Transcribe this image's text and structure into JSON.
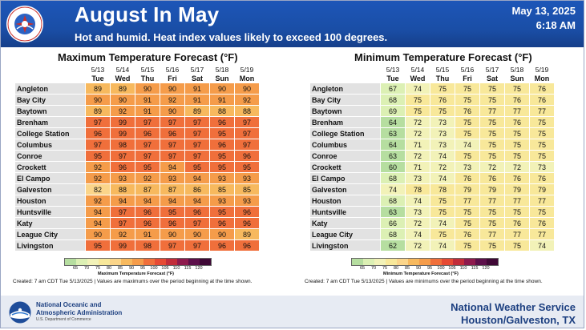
{
  "header": {
    "title": "August In May",
    "subtitle": "Hot and humid. Heat index values likely to exceed 100 degrees.",
    "date": "May 13, 2025",
    "time": "6:18 AM",
    "seal_text": "NATIONAL WEATHER SERVICE"
  },
  "days": [
    {
      "date": "5/13",
      "day": "Tue"
    },
    {
      "date": "5/14",
      "day": "Wed"
    },
    {
      "date": "5/15",
      "day": "Thu"
    },
    {
      "date": "5/16",
      "day": "Fri"
    },
    {
      "date": "5/17",
      "day": "Sat"
    },
    {
      "date": "5/18",
      "day": "Sun"
    },
    {
      "date": "5/19",
      "day": "Mon"
    }
  ],
  "max_panel": {
    "title": "Maximum Temperature Forecast (°F)",
    "legend_caption": "Maximum Temperature Forecast (°F)",
    "note": "Created: 7 am CDT Tue 5/13/2025  |  Values are maximums over the period beginning at the time shown.",
    "rows": [
      {
        "city": "Angleton",
        "values": [
          89,
          89,
          90,
          90,
          91,
          90,
          90
        ]
      },
      {
        "city": "Bay City",
        "values": [
          90,
          90,
          91,
          92,
          91,
          91,
          92
        ]
      },
      {
        "city": "Baytown",
        "values": [
          89,
          92,
          91,
          90,
          89,
          88,
          88
        ]
      },
      {
        "city": "Brenham",
        "values": [
          97,
          99,
          97,
          97,
          97,
          96,
          97
        ]
      },
      {
        "city": "College Station",
        "values": [
          96,
          99,
          96,
          96,
          97,
          95,
          97
        ]
      },
      {
        "city": "Columbus",
        "values": [
          97,
          98,
          97,
          97,
          97,
          96,
          97
        ]
      },
      {
        "city": "Conroe",
        "values": [
          95,
          97,
          97,
          97,
          97,
          95,
          96
        ]
      },
      {
        "city": "Crockett",
        "values": [
          92,
          96,
          95,
          94,
          95,
          95,
          95
        ]
      },
      {
        "city": "El Campo",
        "values": [
          92,
          93,
          92,
          93,
          94,
          93,
          93
        ]
      },
      {
        "city": "Galveston",
        "values": [
          82,
          88,
          87,
          87,
          86,
          85,
          85
        ]
      },
      {
        "city": "Houston",
        "values": [
          92,
          94,
          94,
          94,
          94,
          93,
          93
        ]
      },
      {
        "city": "Huntsville",
        "values": [
          94,
          97,
          96,
          95,
          96,
          95,
          96
        ]
      },
      {
        "city": "Katy",
        "values": [
          94,
          97,
          96,
          96,
          97,
          96,
          96
        ]
      },
      {
        "city": "League City",
        "values": [
          90,
          92,
          91,
          90,
          90,
          90,
          89
        ]
      },
      {
        "city": "Livingston",
        "values": [
          95,
          99,
          98,
          97,
          97,
          96,
          96
        ]
      }
    ]
  },
  "min_panel": {
    "title": "Minimum Temperature Forecast (°F)",
    "legend_caption": "Minimum Temperature Forecast (°F)",
    "note": "Created: 7 am CDT Tue 5/13/2025  |  Values are minimums over the period beginning at the time shown.",
    "rows": [
      {
        "city": "Angleton",
        "values": [
          67,
          74,
          75,
          75,
          75,
          75,
          76
        ]
      },
      {
        "city": "Bay City",
        "values": [
          68,
          75,
          76,
          75,
          75,
          76,
          76
        ]
      },
      {
        "city": "Baytown",
        "values": [
          69,
          75,
          75,
          76,
          77,
          77,
          77
        ]
      },
      {
        "city": "Brenham",
        "values": [
          64,
          72,
          73,
          75,
          75,
          76,
          75
        ]
      },
      {
        "city": "College Station",
        "values": [
          63,
          72,
          73,
          75,
          75,
          75,
          75
        ]
      },
      {
        "city": "Columbus",
        "values": [
          64,
          71,
          73,
          74,
          75,
          75,
          75
        ]
      },
      {
        "city": "Conroe",
        "values": [
          63,
          72,
          74,
          75,
          75,
          75,
          75
        ]
      },
      {
        "city": "Crockett",
        "values": [
          60,
          71,
          72,
          73,
          72,
          72,
          73
        ]
      },
      {
        "city": "El Campo",
        "values": [
          68,
          73,
          74,
          76,
          76,
          76,
          76
        ]
      },
      {
        "city": "Galveston",
        "values": [
          74,
          78,
          78,
          79,
          79,
          79,
          79
        ]
      },
      {
        "city": "Houston",
        "values": [
          68,
          74,
          75,
          77,
          77,
          77,
          77
        ]
      },
      {
        "city": "Huntsville",
        "values": [
          63,
          73,
          75,
          75,
          75,
          75,
          75
        ]
      },
      {
        "city": "Katy",
        "values": [
          66,
          72,
          74,
          75,
          75,
          76,
          76
        ]
      },
      {
        "city": "League City",
        "values": [
          68,
          74,
          75,
          76,
          77,
          77,
          77
        ]
      },
      {
        "city": "Livingston",
        "values": [
          62,
          72,
          74,
          75,
          75,
          75,
          74
        ]
      }
    ]
  },
  "legend_ticks": [
    "65",
    "70",
    "75",
    "80",
    "85",
    "90",
    "95",
    "100",
    "105",
    "110",
    "115",
    "120"
  ],
  "legend_colors": [
    "#b6dea0",
    "#dcf0b4",
    "#f2f2b8",
    "#f8e89a",
    "#fbd58a",
    "#f7b95e",
    "#f59c4a",
    "#f06f3b",
    "#e64a34",
    "#c22d3a",
    "#8e1a4d",
    "#5c0f4a",
    "#3f0836"
  ],
  "footer": {
    "noaa_line1": "National Oceanic and",
    "noaa_line2": "Atmospheric Administration",
    "noaa_line3": "U.S. Department of Commerce",
    "noaa_logo_text": "NOAA",
    "nws_line1": "National Weather Service",
    "nws_line2": "Houston/Galveston, TX"
  }
}
